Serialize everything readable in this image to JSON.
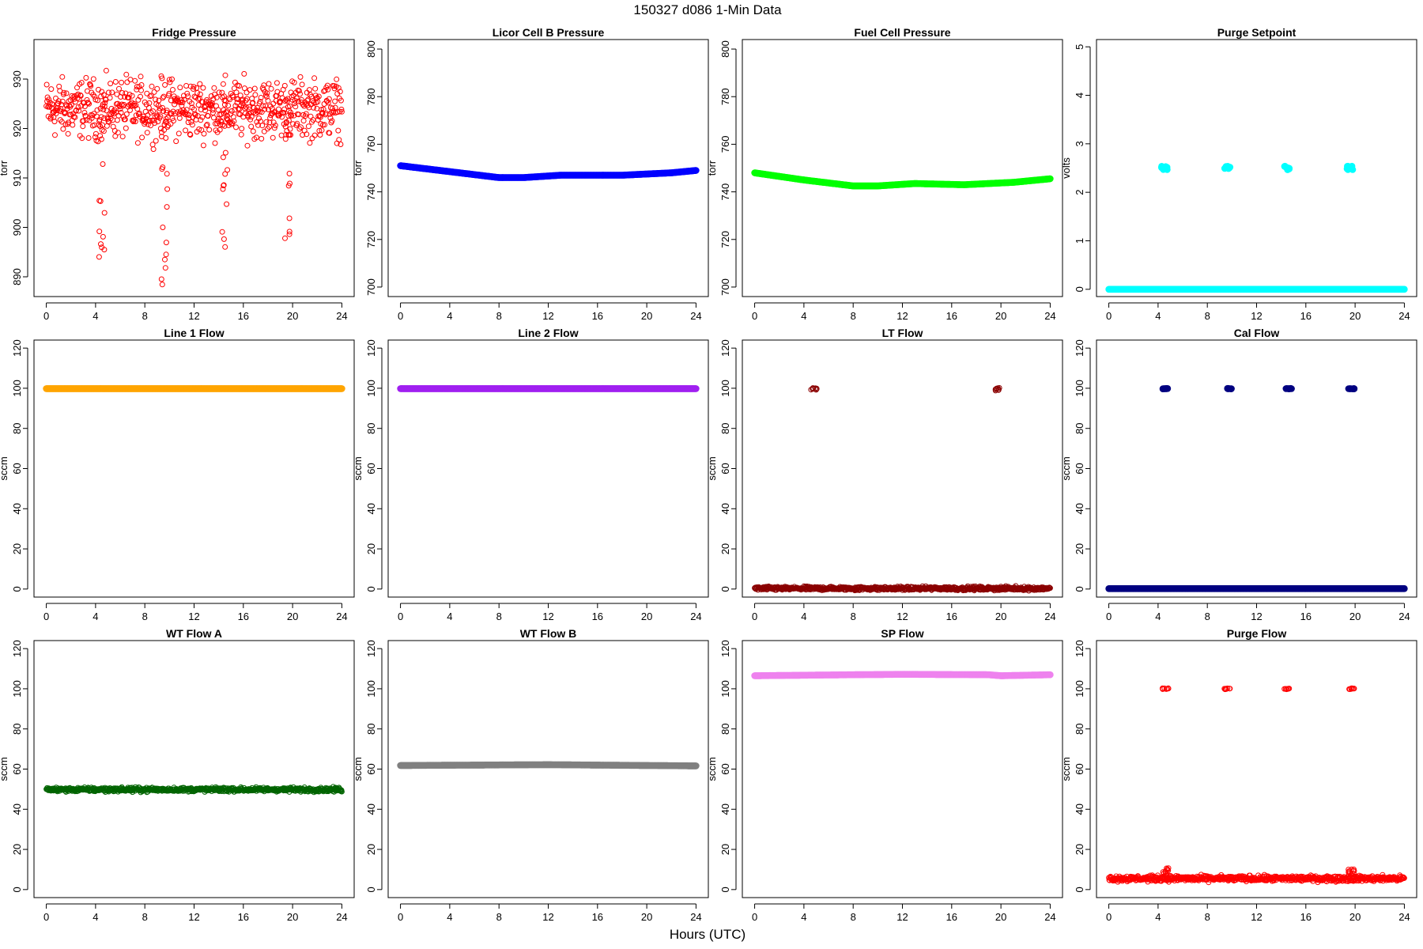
{
  "page_title": "150327   d086   1-Min Data",
  "xlabel": "Hours (UTC)",
  "chart_data": [
    {
      "type": "scatter",
      "title": "Fridge Pressure",
      "ylabel": "torr",
      "ylim": [
        886,
        938
      ],
      "yticks": [
        890,
        900,
        910,
        920,
        930
      ],
      "xlim": [
        -1,
        25
      ],
      "xticks": [
        0,
        4,
        8,
        12,
        16,
        20,
        24
      ],
      "grid": false,
      "color": "#ff0000",
      "marker": "open-circle",
      "series": [
        {
          "pattern": "noisy",
          "base": 924,
          "noise": 5,
          "spikes": [
            {
              "x": 4.5,
              "to": 894
            },
            {
              "x": 9.6,
              "to": 887
            },
            {
              "x": 14.5,
              "to": 894
            },
            {
              "x": 19.6,
              "to": 891
            }
          ]
        }
      ]
    },
    {
      "type": "scatter",
      "title": "Licor Cell B Pressure",
      "ylabel": "torr",
      "ylim": [
        696,
        804
      ],
      "yticks": [
        700,
        720,
        740,
        760,
        780,
        800
      ],
      "xlim": [
        -1,
        25
      ],
      "xticks": [
        0,
        4,
        8,
        12,
        16,
        20,
        24
      ],
      "grid": false,
      "color": "#0000ff",
      "marker": "filled-circle",
      "series": [
        {
          "pattern": "curve",
          "points": [
            [
              0,
              751
            ],
            [
              4,
              748.5
            ],
            [
              8,
              746
            ],
            [
              10,
              746
            ],
            [
              13,
              747
            ],
            [
              18,
              747
            ],
            [
              22,
              748
            ],
            [
              24,
              749
            ]
          ]
        }
      ]
    },
    {
      "type": "scatter",
      "title": "Fuel Cell Pressure",
      "ylabel": "torr",
      "ylim": [
        696,
        804
      ],
      "yticks": [
        700,
        720,
        740,
        760,
        780,
        800
      ],
      "xlim": [
        -1,
        25
      ],
      "xticks": [
        0,
        4,
        8,
        12,
        16,
        20,
        24
      ],
      "grid": false,
      "color": "#00ff00",
      "marker": "filled-circle",
      "series": [
        {
          "pattern": "curve",
          "points": [
            [
              0,
              748
            ],
            [
              4,
              745
            ],
            [
              8,
              742.5
            ],
            [
              10,
              742.5
            ],
            [
              13,
              743.5
            ],
            [
              17,
              743
            ],
            [
              21,
              744
            ],
            [
              24,
              745.5
            ]
          ]
        }
      ]
    },
    {
      "type": "scatter",
      "title": "Purge Setpoint",
      "ylabel": "volts",
      "ylim": [
        -0.15,
        5.15
      ],
      "yticks": [
        0,
        1,
        2,
        3,
        4,
        5
      ],
      "xlim": [
        -1,
        25
      ],
      "xticks": [
        0,
        4,
        8,
        12,
        16,
        20,
        24
      ],
      "grid": false,
      "color": "#00ffff",
      "marker": "filled-circle",
      "series": [
        {
          "pattern": "constant",
          "value": 0
        },
        {
          "pattern": "clusters",
          "value": 2.5,
          "xs": [
            4.5,
            9.6,
            14.5,
            19.6
          ],
          "spread": 0.04
        }
      ]
    },
    {
      "type": "scatter",
      "title": "Line 1 Flow",
      "ylabel": "sccm",
      "ylim": [
        -4,
        124
      ],
      "yticks": [
        0,
        20,
        40,
        60,
        80,
        100,
        120
      ],
      "xlim": [
        -1,
        25
      ],
      "xticks": [
        0,
        4,
        8,
        12,
        16,
        20,
        24
      ],
      "grid": false,
      "color": "#ffa500",
      "marker": "filled-circle",
      "series": [
        {
          "pattern": "constant",
          "value": 99.8
        }
      ]
    },
    {
      "type": "scatter",
      "title": "Line 2 Flow",
      "ylabel": "sccm",
      "ylim": [
        -4,
        124
      ],
      "yticks": [
        0,
        20,
        40,
        60,
        80,
        100,
        120
      ],
      "xlim": [
        -1,
        25
      ],
      "xticks": [
        0,
        4,
        8,
        12,
        16,
        20,
        24
      ],
      "grid": false,
      "color": "#a020f0",
      "marker": "filled-circle",
      "series": [
        {
          "pattern": "constant",
          "value": 99.8
        }
      ]
    },
    {
      "type": "scatter",
      "title": "LT Flow",
      "ylabel": "sccm",
      "ylim": [
        -4,
        124
      ],
      "yticks": [
        0,
        20,
        40,
        60,
        80,
        100,
        120
      ],
      "xlim": [
        -1,
        25
      ],
      "xticks": [
        0,
        4,
        8,
        12,
        16,
        20,
        24
      ],
      "grid": false,
      "color": "#8b0000",
      "marker": "open-circle",
      "series": [
        {
          "pattern": "noisy",
          "base": 0.3,
          "noise": 0.8
        },
        {
          "pattern": "clusters",
          "value": 99.5,
          "xs": [
            4.8,
            19.8
          ],
          "spread": 0.8
        }
      ]
    },
    {
      "type": "scatter",
      "title": "Cal Flow",
      "ylabel": "sccm",
      "ylim": [
        -4,
        124
      ],
      "yticks": [
        0,
        20,
        40,
        60,
        80,
        100,
        120
      ],
      "xlim": [
        -1,
        25
      ],
      "xticks": [
        0,
        4,
        8,
        12,
        16,
        20,
        24
      ],
      "grid": false,
      "color": "#000080",
      "marker": "filled-circle",
      "series": [
        {
          "pattern": "constant",
          "value": 0.2
        },
        {
          "pattern": "clusters",
          "value": 99.8,
          "xs": [
            4.6,
            9.7,
            14.6,
            19.7
          ],
          "spread": 0.1
        }
      ]
    },
    {
      "type": "scatter",
      "title": "WT Flow A",
      "ylabel": "sccm",
      "ylim": [
        -4,
        124
      ],
      "yticks": [
        0,
        20,
        40,
        60,
        80,
        100,
        120
      ],
      "xlim": [
        -1,
        25
      ],
      "xticks": [
        0,
        4,
        8,
        12,
        16,
        20,
        24
      ],
      "grid": false,
      "color": "#006400",
      "marker": "open-circle",
      "series": [
        {
          "pattern": "noisy",
          "base": 49.8,
          "noise": 0.9
        }
      ]
    },
    {
      "type": "scatter",
      "title": "WT Flow B",
      "ylabel": "sccm",
      "ylim": [
        -4,
        124
      ],
      "yticks": [
        0,
        20,
        40,
        60,
        80,
        100,
        120
      ],
      "xlim": [
        -1,
        25
      ],
      "xticks": [
        0,
        4,
        8,
        12,
        16,
        20,
        24
      ],
      "grid": false,
      "color": "#808080",
      "marker": "filled-circle",
      "series": [
        {
          "pattern": "curve",
          "points": [
            [
              0,
              61.8
            ],
            [
              12,
              62.2
            ],
            [
              24,
              61.6
            ]
          ]
        }
      ]
    },
    {
      "type": "scatter",
      "title": "SP Flow",
      "ylabel": "sccm",
      "ylim": [
        -4,
        124
      ],
      "yticks": [
        0,
        20,
        40,
        60,
        80,
        100,
        120
      ],
      "xlim": [
        -1,
        25
      ],
      "xticks": [
        0,
        4,
        8,
        12,
        16,
        20,
        24
      ],
      "grid": false,
      "color": "#ee82ee",
      "marker": "filled-circle",
      "series": [
        {
          "pattern": "curve",
          "points": [
            [
              0,
              106.5
            ],
            [
              8,
              107
            ],
            [
              12,
              107.2
            ],
            [
              19,
              107
            ],
            [
              20,
              106.5
            ],
            [
              24,
              107
            ]
          ]
        }
      ]
    },
    {
      "type": "scatter",
      "title": "Purge Flow",
      "ylabel": "sccm",
      "ylim": [
        -4,
        124
      ],
      "yticks": [
        0,
        20,
        40,
        60,
        80,
        100,
        120
      ],
      "xlim": [
        -1,
        25
      ],
      "xticks": [
        0,
        4,
        8,
        12,
        16,
        20,
        24
      ],
      "grid": false,
      "color": "#ff0000",
      "marker": "open-circle",
      "series": [
        {
          "pattern": "noisy",
          "base": 5.5,
          "noise": 1.2,
          "spikes": [
            {
              "x": 4.6,
              "to": 12
            },
            {
              "x": 19.7,
              "to": 11
            }
          ]
        },
        {
          "pattern": "clusters",
          "value": 100,
          "xs": [
            4.6,
            9.6,
            14.5,
            19.7
          ],
          "spread": 0.3
        }
      ]
    }
  ]
}
